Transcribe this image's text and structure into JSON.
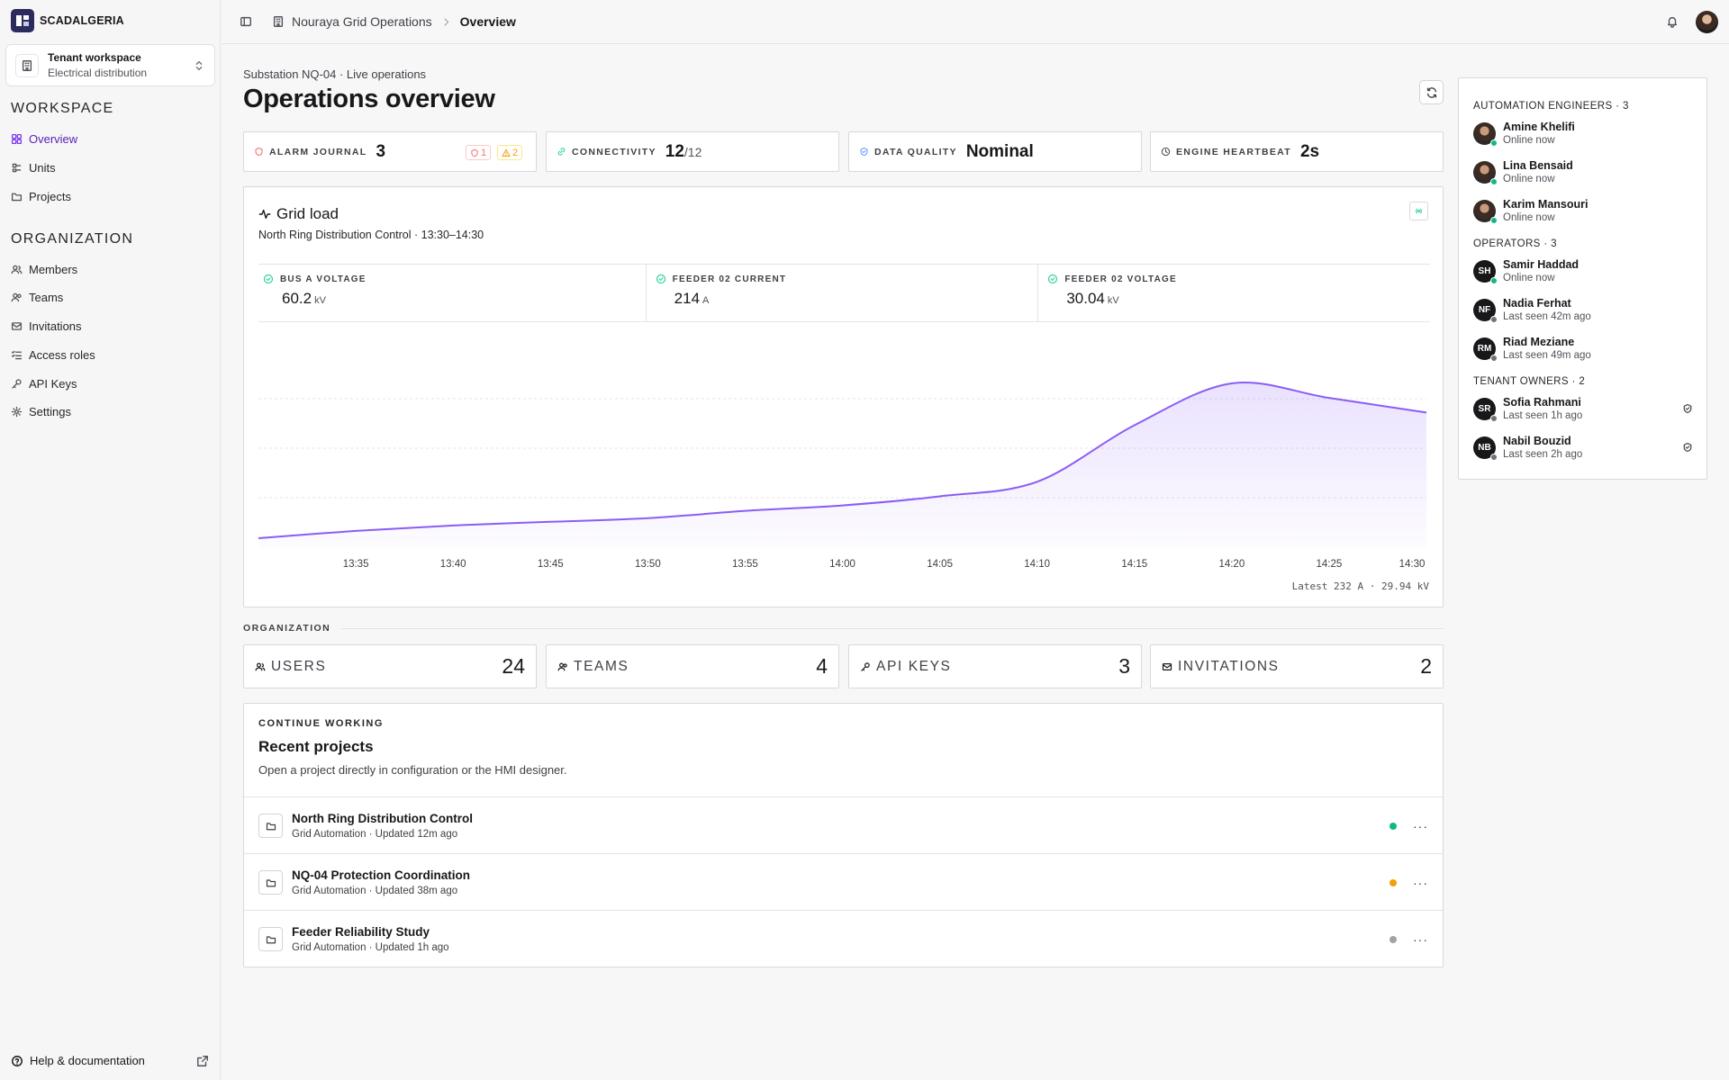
{
  "app": {
    "name": "SCADALGERIA"
  },
  "tenant": {
    "name": "Tenant workspace",
    "type": "Electrical distribution"
  },
  "sidebar": {
    "workspace_title": "WORKSPACE",
    "workspace_items": [
      {
        "label": "Overview",
        "icon": "grid-icon",
        "active": true
      },
      {
        "label": "Units",
        "icon": "units-icon"
      },
      {
        "label": "Projects",
        "icon": "folder-icon"
      }
    ],
    "org_title": "ORGANIZATION",
    "org_items": [
      {
        "label": "Members",
        "icon": "users-icon"
      },
      {
        "label": "Teams",
        "icon": "team-icon"
      },
      {
        "label": "Invitations",
        "icon": "mail-icon"
      },
      {
        "label": "Access roles",
        "icon": "list-check-icon"
      },
      {
        "label": "API Keys",
        "icon": "key-icon"
      },
      {
        "label": "Settings",
        "icon": "gear-icon"
      }
    ],
    "help": "Help & documentation"
  },
  "breadcrumb": {
    "parent": "Nouraya Grid Operations",
    "current": "Overview"
  },
  "header": {
    "subtitle": "Substation NQ-04 · Live operations",
    "title": "Operations overview"
  },
  "stats": {
    "alarm": {
      "label": "ALARM JOURNAL",
      "value": "3",
      "critical": "1",
      "warning": "2"
    },
    "connectivity": {
      "label": "CONNECTIVITY",
      "value": "12",
      "total": "/12"
    },
    "quality": {
      "label": "DATA QUALITY",
      "value": "Nominal"
    },
    "heartbeat": {
      "label": "ENGINE HEARTBEAT",
      "value": "2s"
    }
  },
  "grid": {
    "title": "Grid load",
    "subtitle": "North Ring Distribution Control · 13:30–14:30",
    "metrics": [
      {
        "label": "BUS A VOLTAGE",
        "value": "60.2",
        "unit": "kV"
      },
      {
        "label": "FEEDER 02 CURRENT",
        "value": "214",
        "unit": "A"
      },
      {
        "label": "FEEDER 02 VOLTAGE",
        "value": "30.04",
        "unit": "kV"
      }
    ],
    "latest": "Latest 232 A · 29.94 kV"
  },
  "chart_data": {
    "type": "area",
    "title": "Grid load",
    "x": [
      "13:30",
      "13:35",
      "13:40",
      "13:45",
      "13:50",
      "13:55",
      "14:00",
      "14:05",
      "14:10",
      "14:15",
      "14:20",
      "14:25",
      "14:30"
    ],
    "x_tick_labels": [
      "13:35",
      "13:40",
      "13:45",
      "13:50",
      "13:55",
      "14:00",
      "14:05",
      "14:10",
      "14:15",
      "14:20",
      "14:25",
      "14:30"
    ],
    "series": [
      {
        "values": [
          0.0,
          0.04,
          0.07,
          0.09,
          0.11,
          0.15,
          0.18,
          0.23,
          0.31,
          0.62,
          0.85,
          0.77,
          0.69
        ]
      }
    ],
    "ylim": [
      0,
      1
    ],
    "grid": true,
    "color": "#8b5cf6"
  },
  "organization": {
    "title": "ORGANIZATION",
    "cards": [
      {
        "label": "USERS",
        "value": "24",
        "icon": "users-icon"
      },
      {
        "label": "TEAMS",
        "value": "4",
        "icon": "team-icon"
      },
      {
        "label": "API KEYS",
        "value": "3",
        "icon": "key-icon"
      },
      {
        "label": "INVITATIONS",
        "value": "2",
        "icon": "mail-icon"
      }
    ]
  },
  "recent": {
    "eyebrow": "CONTINUE WORKING",
    "title": "Recent projects",
    "description": "Open a project directly in configuration or the HMI designer.",
    "projects": [
      {
        "name": "North Ring Distribution Control",
        "meta": "Grid Automation · Updated 12m ago",
        "status_color": "#10b981"
      },
      {
        "name": "NQ-04 Protection Coordination",
        "meta": "Grid Automation · Updated 38m ago",
        "status_color": "#f59e0b"
      },
      {
        "name": "Feeder Reliability Study",
        "meta": "Grid Automation · Updated 1h ago",
        "status_color": "#a1a1aa"
      }
    ]
  },
  "people": {
    "groups": [
      {
        "title": "AUTOMATION ENGINEERS · 3",
        "members": [
          {
            "name": "Amine Khelifi",
            "status": "Online now"
          },
          {
            "name": "Lina Bensaid",
            "status": "Online now"
          },
          {
            "name": "Karim Mansouri",
            "status": "Online now"
          }
        ]
      },
      {
        "title": "OPERATORS · 3",
        "members": [
          {
            "initials": "SH",
            "name": "Samir Haddad",
            "status": "Online now"
          },
          {
            "initials": "NF",
            "name": "Nadia Ferhat",
            "status": "Last seen 42m ago"
          },
          {
            "initials": "RM",
            "name": "Riad Meziane",
            "status": "Last seen 49m ago"
          }
        ]
      },
      {
        "title": "TENANT OWNERS · 2",
        "members": [
          {
            "initials": "SR",
            "name": "Sofia Rahmani",
            "status": "Last seen 1h ago"
          },
          {
            "initials": "NB",
            "name": "Nabil Bouzid",
            "status": "Last seen 2h ago"
          }
        ]
      }
    ]
  }
}
